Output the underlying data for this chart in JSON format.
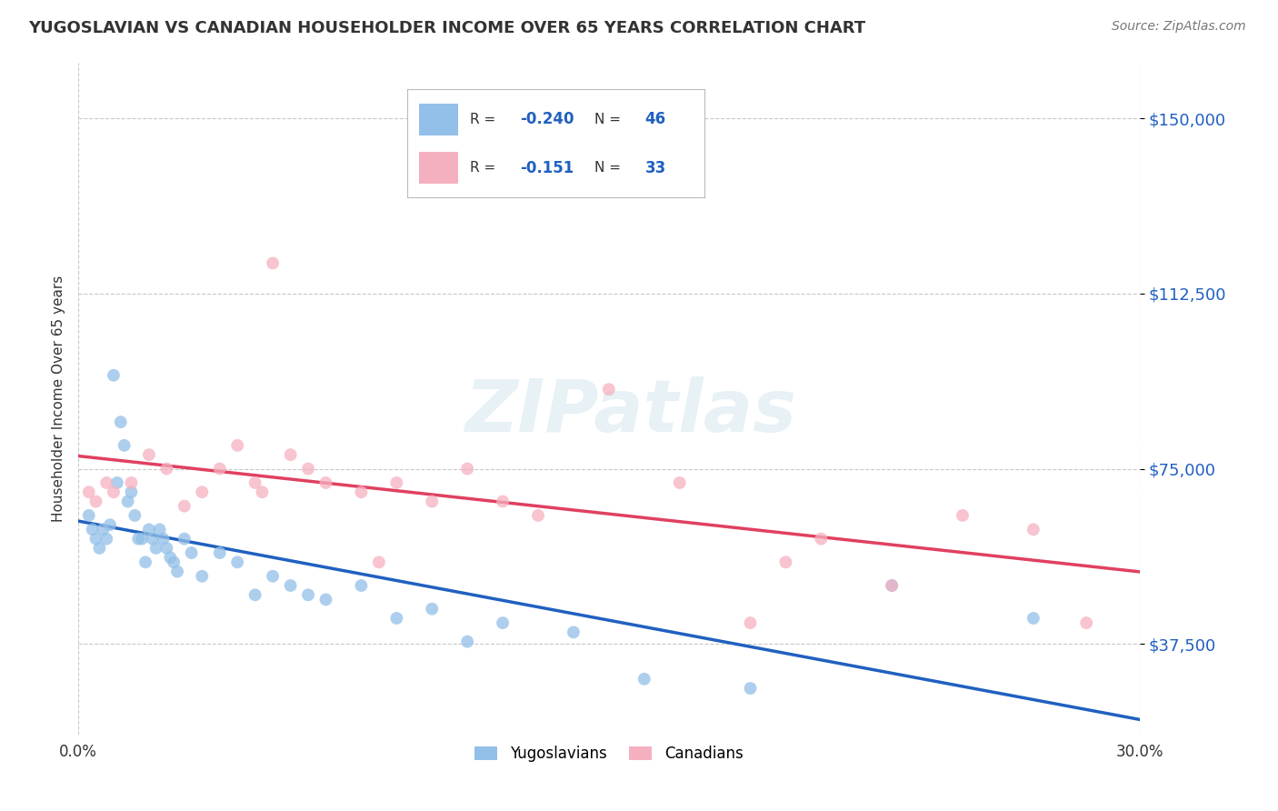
{
  "title": "YUGOSLAVIAN VS CANADIAN HOUSEHOLDER INCOME OVER 65 YEARS CORRELATION CHART",
  "source": "Source: ZipAtlas.com",
  "ylabel": "Householder Income Over 65 years",
  "xlim": [
    0.0,
    30.0
  ],
  "ylim": [
    18000,
    162000
  ],
  "yticks": [
    37500,
    75000,
    112500,
    150000
  ],
  "ytick_labels": [
    "$37,500",
    "$75,000",
    "$112,500",
    "$150,000"
  ],
  "blue_color": "#92c0e8",
  "pink_color": "#f5b0c0",
  "blue_line_color": "#2060c0",
  "pink_line_color": "#e04060",
  "legend_R1": "-0.240",
  "legend_N1": "46",
  "legend_R2": "-0.151",
  "legend_N2": "33",
  "watermark": "ZIPatlas",
  "background_color": "#ffffff",
  "grid_color": "#c8c8c8",
  "yugoslavians_x": [
    0.3,
    0.4,
    0.5,
    0.6,
    0.7,
    0.8,
    0.9,
    1.0,
    1.1,
    1.2,
    1.3,
    1.4,
    1.5,
    1.6,
    1.7,
    1.8,
    1.9,
    2.0,
    2.1,
    2.2,
    2.3,
    2.4,
    2.5,
    2.6,
    2.7,
    2.8,
    3.0,
    3.2,
    3.5,
    4.0,
    4.5,
    5.0,
    5.5,
    6.0,
    6.5,
    7.0,
    8.0,
    9.0,
    10.0,
    11.0,
    12.0,
    14.0,
    16.0,
    19.0,
    23.0,
    27.0
  ],
  "yugoslavians_y": [
    65000,
    62000,
    60000,
    58000,
    62000,
    60000,
    63000,
    95000,
    72000,
    85000,
    80000,
    68000,
    70000,
    65000,
    60000,
    60000,
    55000,
    62000,
    60000,
    58000,
    62000,
    60000,
    58000,
    56000,
    55000,
    53000,
    60000,
    57000,
    52000,
    57000,
    55000,
    48000,
    52000,
    50000,
    48000,
    47000,
    50000,
    43000,
    45000,
    38000,
    42000,
    40000,
    30000,
    28000,
    50000,
    43000
  ],
  "canadians_x": [
    0.3,
    0.5,
    0.8,
    1.0,
    1.5,
    2.0,
    2.5,
    3.0,
    3.5,
    4.0,
    4.5,
    5.0,
    5.5,
    6.0,
    6.5,
    7.0,
    8.0,
    9.0,
    10.0,
    11.0,
    12.0,
    13.0,
    15.0,
    17.0,
    19.0,
    21.0,
    23.0,
    25.0,
    27.0,
    28.5,
    5.2,
    8.5,
    20.0
  ],
  "canadians_y": [
    70000,
    68000,
    72000,
    70000,
    72000,
    78000,
    75000,
    67000,
    70000,
    75000,
    80000,
    72000,
    119000,
    78000,
    75000,
    72000,
    70000,
    72000,
    68000,
    75000,
    68000,
    65000,
    92000,
    72000,
    42000,
    60000,
    50000,
    65000,
    62000,
    42000,
    70000,
    55000,
    55000
  ]
}
